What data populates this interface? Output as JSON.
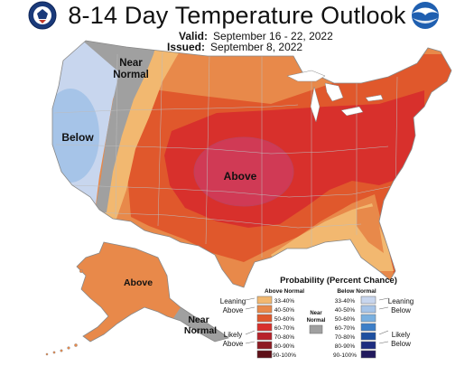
{
  "title": "8-14 Day Temperature Outlook",
  "valid": {
    "label": "Valid:",
    "value": "September 16 - 22, 2022"
  },
  "issued": {
    "label": "Issued:",
    "value": "September 8, 2022"
  },
  "logos": {
    "left": "commerce-seal-icon",
    "right": "noaa-logo-icon",
    "right_text": "NOAA"
  },
  "map_labels": {
    "near_normal_west": [
      "Near",
      "Normal"
    ],
    "below": "Below",
    "above": "Above",
    "alaska_above": "Above",
    "near_normal_alaska": [
      "Near",
      "Normal"
    ]
  },
  "legend": {
    "title": "Probability (Percent Chance)",
    "above_header": "Above Normal",
    "below_header": "Below Normal",
    "leaning_above": [
      "Leaning",
      "Above"
    ],
    "likely_above": [
      "Likely",
      "Above"
    ],
    "leaning_below": [
      "Leaning",
      "Below"
    ],
    "likely_below": [
      "Likely",
      "Below"
    ],
    "near_normal": [
      "Near",
      "Normal"
    ],
    "above_bins": [
      {
        "label": "33-40%",
        "color": "#f2b870"
      },
      {
        "label": "40-50%",
        "color": "#e8894a"
      },
      {
        "label": "50-60%",
        "color": "#e0582c"
      },
      {
        "label": "60-70%",
        "color": "#d8302c"
      },
      {
        "label": "70-80%",
        "color": "#b8212a"
      },
      {
        "label": "80-90%",
        "color": "#8e1a22"
      },
      {
        "label": "90-100%",
        "color": "#5e1018"
      }
    ],
    "below_bins": [
      {
        "label": "33-40%",
        "color": "#c8d6ee"
      },
      {
        "label": "40-50%",
        "color": "#a6c4e8"
      },
      {
        "label": "50-60%",
        "color": "#7ab0e0"
      },
      {
        "label": "60-70%",
        "color": "#3d7fc8"
      },
      {
        "label": "70-80%",
        "color": "#1d4fa0"
      },
      {
        "label": "80-90%",
        "color": "#1e2d80"
      },
      {
        "label": "90-100%",
        "color": "#221a5e"
      }
    ],
    "near_normal_color": "#a0a0a0"
  }
}
